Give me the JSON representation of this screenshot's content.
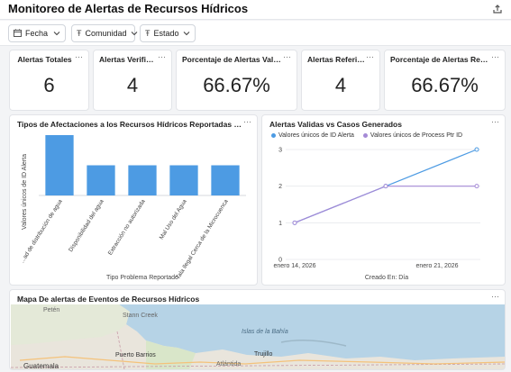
{
  "header": {
    "title": "Monitoreo de Alertas de Recursos Hídricos",
    "share_icon": "share-icon"
  },
  "filters": [
    {
      "label": "Fecha",
      "icon": "calendar-icon"
    },
    {
      "label": "Comunidad",
      "icon": "text-icon"
    },
    {
      "label": "Estado",
      "icon": "text-icon"
    }
  ],
  "kpis": [
    {
      "title": "Alertas Totales",
      "value": "6"
    },
    {
      "title": "Alertas Verificad...",
      "value": "4"
    },
    {
      "title": "Porcentaje de Alertas Validadas",
      "value": "66.67%"
    },
    {
      "title": "Alertas Referidos",
      "value": "4"
    },
    {
      "title": "Porcentaje de Alertas Referidas",
      "value": "66.67%"
    }
  ],
  "menu_dots": "···",
  "bar_panel": {
    "title": "Tipos de Afectaciones a los Recursos Hídricos Reportadas por la Comunid...",
    "chart_data": {
      "type": "bar",
      "categories": [
        "...ad de distribución de agua",
        "Disponibilidad del agua",
        "Extracción no autorizada",
        "Mal Uso del Agua",
        "Tala Ilegal Cerca de la Microcuenca"
      ],
      "values": [
        2,
        1,
        1,
        1,
        1
      ],
      "xlabel": "Tipo Problema Reportado",
      "ylabel": "Valores únicos de ID Alerta",
      "ylim": [
        0,
        2
      ],
      "color": "#4d9be3"
    }
  },
  "line_panel": {
    "title": "Alertas Validas vs Casos Generados",
    "chart_data": {
      "type": "line",
      "x_ticks": [
        "enero 14, 2026",
        "enero 21, 2026"
      ],
      "xlabel": "Creado En: Día",
      "ylim": [
        0,
        3
      ],
      "y_ticks": [
        "0",
        "1",
        "2",
        "3"
      ],
      "series": [
        {
          "name": "Valores únicos de ID Alerta",
          "color": "#4d9be3",
          "values": [
            1,
            2,
            3
          ]
        },
        {
          "name": "Valores únicos de Process Ptr ID",
          "color": "#a58ad6",
          "values": [
            1,
            2,
            2
          ]
        }
      ]
    }
  },
  "map_panel": {
    "title": "Mapa De alertas de Eventos de Recursos Hídricos",
    "labels": [
      "Petén",
      "Stann Creek",
      "Islas de la Bahía",
      "Puerto Barrios",
      "Trujillo",
      "Atlántida",
      "Guatemala"
    ]
  }
}
